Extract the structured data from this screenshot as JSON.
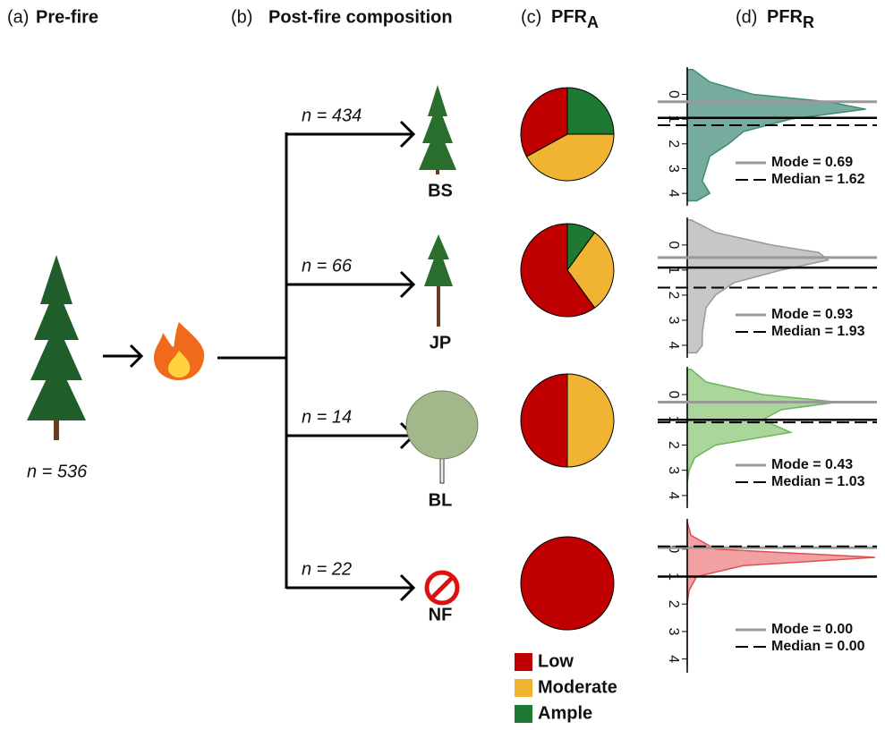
{
  "panels": [
    {
      "letter": "(a)",
      "title": "Pre-fire"
    },
    {
      "letter": "(b)",
      "title": "Post-fire composition"
    },
    {
      "letter": "(c)",
      "title": "PFR",
      "subscript": "A"
    },
    {
      "letter": "(d)",
      "title": "PFR",
      "subscript": "R"
    }
  ],
  "prefire": {
    "count": "n = 536"
  },
  "branches": [
    {
      "count": "n = 434",
      "code": "BS"
    },
    {
      "count": "n = 66",
      "code": "JP"
    },
    {
      "count": "n = 14",
      "code": "BL"
    },
    {
      "count": "n = 22",
      "code": "NF"
    }
  ],
  "chart_data": [
    {
      "type": "pie",
      "categories": [
        "Low",
        "Moderate",
        "Ample"
      ],
      "colors": [
        "#c00000",
        "#f0b432",
        "#1e7a32"
      ],
      "series": [
        {
          "values": [
            33,
            42,
            25
          ]
        },
        {
          "values": [
            60,
            30,
            10
          ]
        },
        {
          "values": [
            50,
            50,
            0
          ]
        },
        {
          "values": [
            100,
            0,
            0
          ]
        }
      ]
    },
    {
      "type": "density",
      "ylim": [
        -1.1,
        4.5
      ],
      "yticks": [
        0,
        1,
        2,
        3,
        4
      ],
      "xlim": [
        0,
        1
      ],
      "color": "#5e9e8c",
      "edge": "#3f8a76",
      "y": [
        -1,
        -0.5,
        0,
        0.3,
        0.6,
        1,
        1.5,
        2,
        2.5,
        3,
        3.5,
        4,
        4.3
      ],
      "density": [
        0.03,
        0.12,
        0.35,
        0.75,
        0.95,
        0.55,
        0.3,
        0.22,
        0.12,
        0.1,
        0.08,
        0.12,
        0.05
      ],
      "mode_line": 0.3,
      "median_line": 1.25,
      "reference_line": 0.95,
      "annotations": [
        "Mode = 0.69",
        "Median = 1.62"
      ]
    },
    {
      "type": "density",
      "ylim": [
        -1.1,
        4.5
      ],
      "yticks": [
        0,
        1,
        2,
        3,
        4
      ],
      "xlim": [
        0,
        1
      ],
      "color": "#bdbdbd",
      "edge": "#999999",
      "y": [
        -1,
        -0.5,
        0,
        0.3,
        0.6,
        1,
        1.5,
        2,
        2.5,
        3,
        3.5,
        4,
        4.3
      ],
      "density": [
        0.02,
        0.15,
        0.45,
        0.7,
        0.75,
        0.5,
        0.25,
        0.15,
        0.1,
        0.09,
        0.08,
        0.08,
        0.05
      ],
      "mode_line": 0.5,
      "median_line": 1.7,
      "reference_line": 0.9,
      "annotations": [
        "Mode = 0.93",
        "Median = 1.93"
      ]
    },
    {
      "type": "density",
      "ylim": [
        -1.1,
        4.5
      ],
      "yticks": [
        0,
        1,
        2,
        3,
        4
      ],
      "xlim": [
        0,
        1
      ],
      "color": "#9ccf8a",
      "edge": "#6bb55a",
      "y": [
        -1,
        -0.5,
        0,
        0.3,
        0.6,
        1,
        1.5,
        2,
        2.5,
        3,
        3.5,
        4,
        4.3
      ],
      "density": [
        0.02,
        0.1,
        0.4,
        0.8,
        0.5,
        0.4,
        0.55,
        0.15,
        0.04,
        0.01,
        0,
        0,
        0
      ],
      "mode_line": 0.3,
      "median_line": 1.1,
      "reference_line": 1,
      "annotations": [
        "Mode = 0.43",
        "Median = 1.03"
      ]
    },
    {
      "type": "density",
      "ylim": [
        -1.1,
        4.5
      ],
      "yticks": [
        0,
        1,
        2,
        3,
        4
      ],
      "xlim": [
        0,
        1
      ],
      "color": "#ef9090",
      "edge": "#e05050",
      "y": [
        -1,
        -0.5,
        0,
        0.3,
        0.6,
        1,
        1.5,
        2,
        2.5,
        3,
        3.5,
        4,
        4.3
      ],
      "density": [
        0,
        0.02,
        0.15,
        1,
        0.3,
        0.05,
        0.01,
        0,
        0,
        0,
        0,
        0,
        0
      ],
      "mode_line": -0.05,
      "median_line": -0.1,
      "reference_line": 1,
      "annotations": [
        "Mode = 0.00",
        "Median = 0.00"
      ]
    }
  ]
}
